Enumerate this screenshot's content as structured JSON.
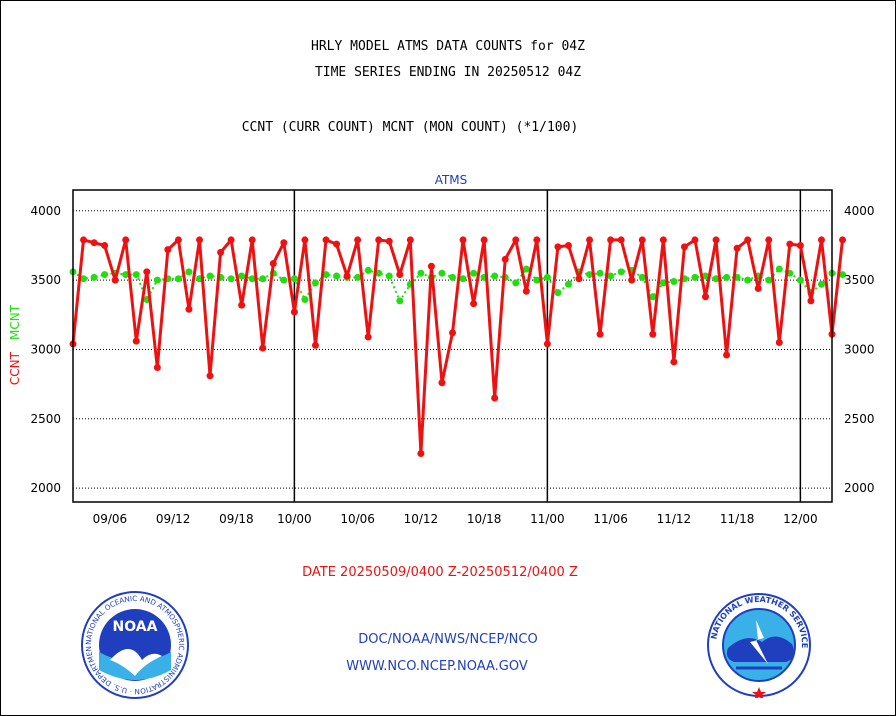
{
  "header": {
    "title_line1": "HRLY MODEL ATMS DATA COUNTS for 04Z",
    "title_line2": "TIME SERIES ENDING IN 20250512 04Z",
    "subtitle": "CCNT (CURR COUNT) MCNT (MON COUNT) (*1/100)"
  },
  "footer": {
    "date_range": "DATE 20250509/0400 Z-20250512/0400 Z",
    "org_line": "DOC/NOAA/NWS/NCEP/NCO",
    "url_line": "WWW.NCO.NCEP.NOAA.GOV",
    "left_logo_text": "NOAA",
    "left_logo_ring": "NATIONAL OCEANIC AND ATMOSPHERIC ADMINISTRATION · U.S. DEPARTMENT OF COMMERCE",
    "right_logo_ring": "NATIONAL WEATHER SERVICE"
  },
  "colors": {
    "ccnt": "#ee1111",
    "mcnt": "#22dd11",
    "panel_label": "#1f3fbf",
    "date_range": "#ee1111",
    "footer_text": "#1f3fbf"
  },
  "chart_data": {
    "type": "line",
    "panel_title": "ATMS",
    "ylabel_ccnt": "CCNT",
    "ylabel_mcnt": "MCNT",
    "ylim": [
      1900,
      4150
    ],
    "y_ticks": [
      2000,
      2500,
      3000,
      3500,
      4000
    ],
    "xlim": [
      0,
      72
    ],
    "x_ticks": [
      {
        "x": 3.5,
        "label": "09/06"
      },
      {
        "x": 9.5,
        "label": "09/12"
      },
      {
        "x": 15.5,
        "label": "09/18"
      },
      {
        "x": 21.0,
        "label": "10/00"
      },
      {
        "x": 27.0,
        "label": "10/06"
      },
      {
        "x": 33.0,
        "label": "10/12"
      },
      {
        "x": 39.0,
        "label": "10/18"
      },
      {
        "x": 45.0,
        "label": "11/00"
      },
      {
        "x": 51.0,
        "label": "11/06"
      },
      {
        "x": 57.0,
        "label": "11/12"
      },
      {
        "x": 63.0,
        "label": "11/18"
      },
      {
        "x": 69.0,
        "label": "12/00"
      }
    ],
    "day_boundaries": [
      21,
      45,
      69
    ],
    "grid": true,
    "series": [
      {
        "name": "CCNT",
        "style": "line",
        "values": [
          3040,
          3790,
          3770,
          3750,
          3500,
          3790,
          3060,
          3560,
          2870,
          3720,
          3790,
          3290,
          3790,
          2810,
          3700,
          3790,
          3320,
          3790,
          3010,
          3620,
          3770,
          3270,
          3790,
          3030,
          3790,
          3760,
          3530,
          3790,
          3090,
          3790,
          3780,
          3540,
          3790,
          2250,
          3600,
          2760,
          3120,
          3790,
          3330,
          3790,
          2650,
          3650,
          3790,
          3420,
          3790,
          3040,
          3740,
          3750,
          3510,
          3790,
          3110,
          3790,
          3790,
          3500,
          3790,
          3110,
          3790,
          2910,
          3740,
          3790,
          3380,
          3790,
          2960,
          3730,
          3790,
          3440,
          3790,
          3050,
          3760,
          3750,
          3350,
          3790,
          3110,
          3790
        ]
      },
      {
        "name": "MCNT",
        "style": "dotted",
        "values": [
          3560,
          3510,
          3520,
          3540,
          3550,
          3540,
          3540,
          3360,
          3500,
          3510,
          3510,
          3560,
          3510,
          3530,
          3520,
          3510,
          3530,
          3510,
          3510,
          3550,
          3500,
          3510,
          3360,
          3480,
          3540,
          3530,
          3520,
          3520,
          3570,
          3550,
          3530,
          3350,
          3470,
          3550,
          3520,
          3550,
          3520,
          3510,
          3550,
          3520,
          3530,
          3520,
          3480,
          3580,
          3500,
          3520,
          3410,
          3470,
          3560,
          3540,
          3550,
          3530,
          3560,
          3570,
          3520,
          3380,
          3480,
          3490,
          3510,
          3520,
          3530,
          3510,
          3520,
          3520,
          3500,
          3530,
          3500,
          3580,
          3550,
          3500,
          3410,
          3470,
          3550,
          3540
        ]
      }
    ]
  }
}
